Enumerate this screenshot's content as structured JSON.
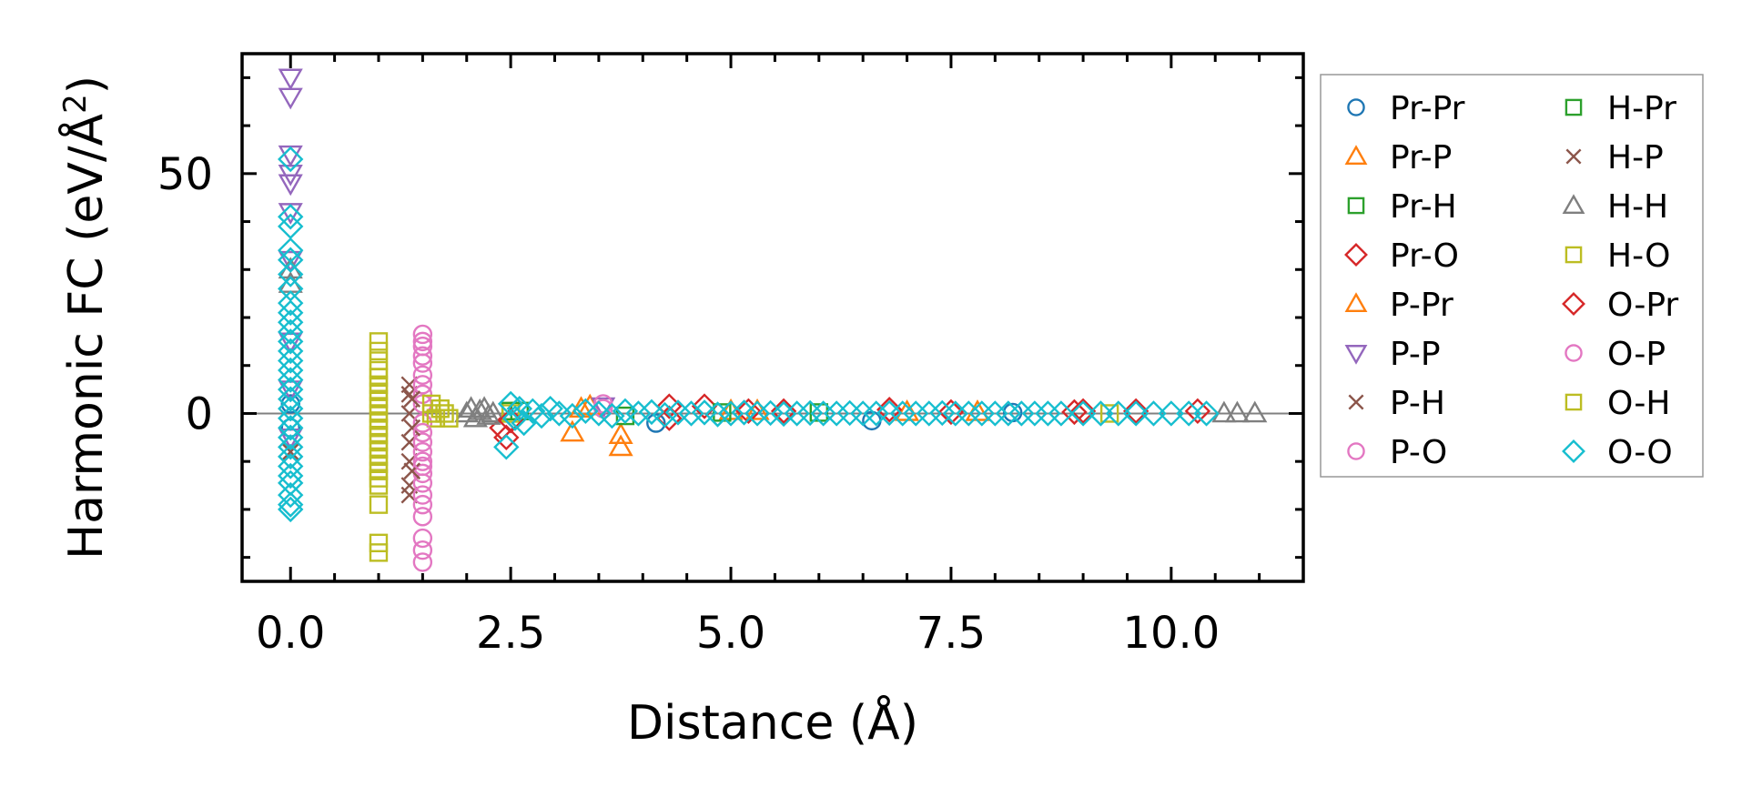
{
  "chart_data": {
    "type": "scatter",
    "title": "",
    "xlabel": "Distance (Å)",
    "ylabel": "Harmonic FC (eV/Å²)",
    "ylabel_main": "Harmonic FC (eV/Å",
    "ylabel_sup": "2",
    "ylabel_close": ")",
    "xlim": [
      -0.55,
      11.5
    ],
    "ylim": [
      -35,
      75
    ],
    "x_ticks": [
      0.0,
      2.5,
      5.0,
      7.5,
      10.0
    ],
    "x_tick_labels": [
      "0.0",
      "2.5",
      "5.0",
      "7.5",
      "10.0"
    ],
    "y_ticks": [
      0,
      50
    ],
    "y_tick_labels": [
      "0",
      "50"
    ],
    "grid": false,
    "reference_line_y": 0,
    "legend_position": "outside-right",
    "series": [
      {
        "name": "Pr-Pr",
        "color": "#1f77b4",
        "marker": "circle",
        "points": [
          [
            0.0,
            2.0
          ],
          [
            0.0,
            -3.0
          ],
          [
            4.15,
            -2.0
          ],
          [
            6.6,
            -1.5
          ],
          [
            8.2,
            0.2
          ]
        ]
      },
      {
        "name": "Pr-P",
        "color": "#ff7f0e",
        "marker": "triangle-up",
        "points": [
          [
            3.2,
            -4.0
          ],
          [
            3.75,
            -7.0
          ],
          [
            3.75,
            -4.5
          ],
          [
            3.3,
            1.0
          ],
          [
            5.0,
            0.5
          ],
          [
            7.0,
            0.3
          ]
        ]
      },
      {
        "name": "Pr-H",
        "color": "#2ca02c",
        "marker": "square",
        "points": [
          [
            2.6,
            0.5
          ],
          [
            3.8,
            -0.5
          ],
          [
            6.0,
            0.2
          ]
        ]
      },
      {
        "name": "Pr-O",
        "color": "#d62728",
        "marker": "diamond",
        "points": [
          [
            2.4,
            -3.0
          ],
          [
            2.45,
            -5.0
          ],
          [
            4.3,
            1.5
          ],
          [
            4.7,
            1.5
          ],
          [
            5.6,
            0.5
          ],
          [
            6.8,
            0.8
          ],
          [
            8.9,
            0.3
          ],
          [
            9.6,
            0.5
          ],
          [
            10.3,
            0.5
          ]
        ]
      },
      {
        "name": "P-Pr",
        "color": "#ff7f0e",
        "marker": "triangle-up",
        "points": [
          [
            3.4,
            1.5
          ],
          [
            5.3,
            0.5
          ],
          [
            7.8,
            0.3
          ]
        ]
      },
      {
        "name": "P-P",
        "color": "#9467bd",
        "marker": "triangle-down",
        "points": [
          [
            0.0,
            70.0
          ],
          [
            0.0,
            66.0
          ],
          [
            0.0,
            54.0
          ],
          [
            0.0,
            50.0
          ],
          [
            0.0,
            48.0
          ],
          [
            0.0,
            42.0
          ],
          [
            0.0,
            32.0
          ],
          [
            0.0,
            15.0
          ],
          [
            0.0,
            5.0
          ],
          [
            0.0,
            -5.0
          ],
          [
            3.55,
            1.5
          ]
        ]
      },
      {
        "name": "P-H",
        "color": "#8c564b",
        "marker": "x",
        "points": [
          [
            1.35,
            6.0
          ],
          [
            1.35,
            4.0
          ],
          [
            1.35,
            0.0
          ],
          [
            1.35,
            -6.0
          ],
          [
            1.35,
            -10.0
          ],
          [
            1.35,
            -15.0
          ],
          [
            1.35,
            -17.0
          ],
          [
            0.0,
            -8.0
          ]
        ]
      },
      {
        "name": "P-O",
        "color": "#e377c2",
        "marker": "circle",
        "points": [
          [
            1.5,
            16.5
          ],
          [
            1.5,
            15.0
          ],
          [
            1.5,
            12.0
          ],
          [
            1.5,
            10.5
          ],
          [
            1.5,
            6.0
          ],
          [
            1.5,
            4.0
          ],
          [
            1.5,
            2.0
          ],
          [
            1.5,
            -2.0
          ],
          [
            1.5,
            -6.0
          ],
          [
            1.5,
            -8.0
          ],
          [
            1.5,
            -11.0
          ],
          [
            1.5,
            -12.5
          ],
          [
            1.5,
            -14.5
          ],
          [
            1.5,
            -17.0
          ],
          [
            1.5,
            -19.0
          ],
          [
            1.5,
            -21.5
          ],
          [
            1.5,
            -26.0
          ],
          [
            1.5,
            -28.5
          ],
          [
            1.5,
            -31.0
          ],
          [
            3.55,
            2.0
          ]
        ]
      },
      {
        "name": "H-Pr",
        "color": "#2ca02c",
        "marker": "square",
        "points": [
          [
            2.5,
            0.5
          ],
          [
            4.9,
            0.2
          ]
        ]
      },
      {
        "name": "H-P",
        "color": "#8c564b",
        "marker": "x",
        "points": [
          [
            1.38,
            3.0
          ],
          [
            1.38,
            -3.0
          ],
          [
            1.38,
            -12.0
          ]
        ]
      },
      {
        "name": "H-H",
        "color": "#7f7f7f",
        "marker": "triangle-up",
        "points": [
          [
            0.0,
            30.0
          ],
          [
            0.0,
            27.0
          ],
          [
            2.0,
            0.0
          ],
          [
            2.05,
            1.0
          ],
          [
            2.1,
            -1.0
          ],
          [
            2.15,
            0.5
          ],
          [
            2.2,
            1.0
          ],
          [
            2.25,
            -0.5
          ],
          [
            2.3,
            0.0
          ],
          [
            10.6,
            0.0
          ],
          [
            10.75,
            0.0
          ],
          [
            10.95,
            0.0
          ]
        ]
      },
      {
        "name": "H-O",
        "color": "#bcbd22",
        "marker": "square",
        "points": [
          [
            1.6,
            2.0
          ],
          [
            1.6,
            0.0
          ],
          [
            1.65,
            -1.0
          ],
          [
            1.7,
            1.0
          ],
          [
            1.75,
            0.0
          ],
          [
            1.8,
            -1.0
          ],
          [
            2.5,
            0.0
          ],
          [
            9.3,
            0.0
          ]
        ]
      },
      {
        "name": "O-Pr",
        "color": "#d62728",
        "marker": "diamond",
        "points": [
          [
            2.5,
            -1.5
          ],
          [
            4.3,
            -1.0
          ],
          [
            5.2,
            0.5
          ],
          [
            7.5,
            0.3
          ],
          [
            9.0,
            0.5
          ]
        ]
      },
      {
        "name": "O-P",
        "color": "#e377c2",
        "marker": "circle",
        "points": [
          [
            1.5,
            14.0
          ],
          [
            1.5,
            8.0
          ],
          [
            1.5,
            -4.0
          ],
          [
            1.5,
            -10.0
          ],
          [
            3.55,
            1.0
          ]
        ]
      },
      {
        "name": "O-H",
        "color": "#bcbd22",
        "marker": "square",
        "points": [
          [
            1.0,
            15.0
          ],
          [
            1.0,
            13.0
          ],
          [
            1.0,
            11.0
          ],
          [
            1.0,
            9.0
          ],
          [
            1.0,
            7.5
          ],
          [
            1.0,
            6.0
          ],
          [
            1.0,
            4.5
          ],
          [
            1.0,
            3.0
          ],
          [
            1.0,
            1.5
          ],
          [
            1.0,
            0.0
          ],
          [
            1.0,
            -1.5
          ],
          [
            1.0,
            -3.0
          ],
          [
            1.0,
            -4.5
          ],
          [
            1.0,
            -6.0
          ],
          [
            1.0,
            -7.5
          ],
          [
            1.0,
            -9.0
          ],
          [
            1.0,
            -10.5
          ],
          [
            1.0,
            -12.0
          ],
          [
            1.0,
            -13.5
          ],
          [
            1.0,
            -15.0
          ],
          [
            1.0,
            -19.0
          ],
          [
            1.0,
            -27.0
          ],
          [
            1.0,
            -29.0
          ]
        ]
      },
      {
        "name": "O-O",
        "color": "#17becf",
        "marker": "diamond",
        "points": [
          [
            0.0,
            53.0
          ],
          [
            0.0,
            41.0
          ],
          [
            0.0,
            39.0
          ],
          [
            0.0,
            34.0
          ],
          [
            0.0,
            32.0
          ],
          [
            0.0,
            29.0
          ],
          [
            0.0,
            26.0
          ],
          [
            0.0,
            23.0
          ],
          [
            0.0,
            21.0
          ],
          [
            0.0,
            19.0
          ],
          [
            0.0,
            17.0
          ],
          [
            0.0,
            15.0
          ],
          [
            0.0,
            13.0
          ],
          [
            0.0,
            11.0
          ],
          [
            0.0,
            9.0
          ],
          [
            0.0,
            7.0
          ],
          [
            0.0,
            5.0
          ],
          [
            0.0,
            3.0
          ],
          [
            0.0,
            1.0
          ],
          [
            0.0,
            -1.0
          ],
          [
            0.0,
            -3.0
          ],
          [
            0.0,
            -5.0
          ],
          [
            0.0,
            -7.0
          ],
          [
            0.0,
            -9.0
          ],
          [
            0.0,
            -11.0
          ],
          [
            0.0,
            -13.0
          ],
          [
            0.0,
            -14.5
          ],
          [
            0.0,
            -17.0
          ],
          [
            0.0,
            -19.0
          ],
          [
            0.0,
            -20.0
          ],
          [
            2.45,
            -7.0
          ],
          [
            2.5,
            2.0
          ],
          [
            2.55,
            -1.0
          ],
          [
            2.6,
            1.0
          ],
          [
            2.65,
            -2.0
          ],
          [
            2.75,
            0.5
          ],
          [
            2.85,
            -0.5
          ],
          [
            2.95,
            1.0
          ],
          [
            3.05,
            0.0
          ],
          [
            3.2,
            -0.5
          ],
          [
            3.35,
            0.5
          ],
          [
            3.5,
            0.0
          ],
          [
            3.65,
            -0.5
          ],
          [
            3.8,
            0.5
          ],
          [
            3.95,
            0.0
          ],
          [
            4.1,
            0.3
          ],
          [
            4.25,
            -0.3
          ],
          [
            4.4,
            0.2
          ],
          [
            4.55,
            0.0
          ],
          [
            4.7,
            0.2
          ],
          [
            4.85,
            -0.2
          ],
          [
            5.0,
            0.0
          ],
          [
            5.15,
            0.2
          ],
          [
            5.3,
            0.0
          ],
          [
            5.45,
            0.1
          ],
          [
            5.6,
            -0.1
          ],
          [
            5.75,
            0.0
          ],
          [
            5.9,
            0.1
          ],
          [
            6.05,
            0.0
          ],
          [
            6.2,
            0.0
          ],
          [
            6.35,
            0.1
          ],
          [
            6.5,
            0.0
          ],
          [
            6.65,
            0.0
          ],
          [
            6.8,
            0.1
          ],
          [
            6.95,
            0.0
          ],
          [
            7.1,
            0.0
          ],
          [
            7.25,
            0.0
          ],
          [
            7.4,
            0.1
          ],
          [
            7.55,
            0.0
          ],
          [
            7.7,
            0.0
          ],
          [
            7.85,
            0.0
          ],
          [
            8.0,
            0.0
          ],
          [
            8.15,
            0.0
          ],
          [
            8.3,
            0.0
          ],
          [
            8.45,
            0.0
          ],
          [
            8.6,
            0.0
          ],
          [
            8.75,
            0.0
          ],
          [
            9.0,
            0.0
          ],
          [
            9.2,
            0.0
          ],
          [
            9.4,
            0.0
          ],
          [
            9.6,
            0.0
          ],
          [
            9.8,
            0.0
          ],
          [
            10.0,
            0.0
          ],
          [
            10.2,
            0.0
          ],
          [
            10.4,
            0.0
          ]
        ]
      }
    ]
  }
}
